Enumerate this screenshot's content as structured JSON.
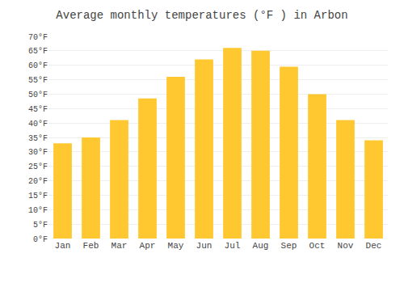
{
  "chart_data": {
    "type": "bar",
    "title": "Average monthly temperatures (°F ) in Arbon",
    "categories": [
      "Jan",
      "Feb",
      "Mar",
      "Apr",
      "May",
      "Jun",
      "Jul",
      "Aug",
      "Sep",
      "Oct",
      "Nov",
      "Dec"
    ],
    "values": [
      33,
      35,
      41,
      48.5,
      56,
      62,
      66,
      65,
      59.5,
      50,
      41,
      34
    ],
    "color": "#FFC830",
    "ylim": [
      0,
      70
    ],
    "yticks": [
      {
        "value": 0,
        "label": "0°F"
      },
      {
        "value": 5,
        "label": "5°F"
      },
      {
        "value": 10,
        "label": "10°F"
      },
      {
        "value": 15,
        "label": "15°F"
      },
      {
        "value": 20,
        "label": "20°F"
      },
      {
        "value": 25,
        "label": "25°F"
      },
      {
        "value": 30,
        "label": "30°F"
      },
      {
        "value": 35,
        "label": "35°F"
      },
      {
        "value": 40,
        "label": "40°F"
      },
      {
        "value": 45,
        "label": "45°F"
      },
      {
        "value": 50,
        "label": "50°F"
      },
      {
        "value": 55,
        "label": "55°F"
      },
      {
        "value": 60,
        "label": "60°F"
      },
      {
        "value": 65,
        "label": "65°F"
      },
      {
        "value": 70,
        "label": "70°F"
      }
    ],
    "grid": true
  }
}
